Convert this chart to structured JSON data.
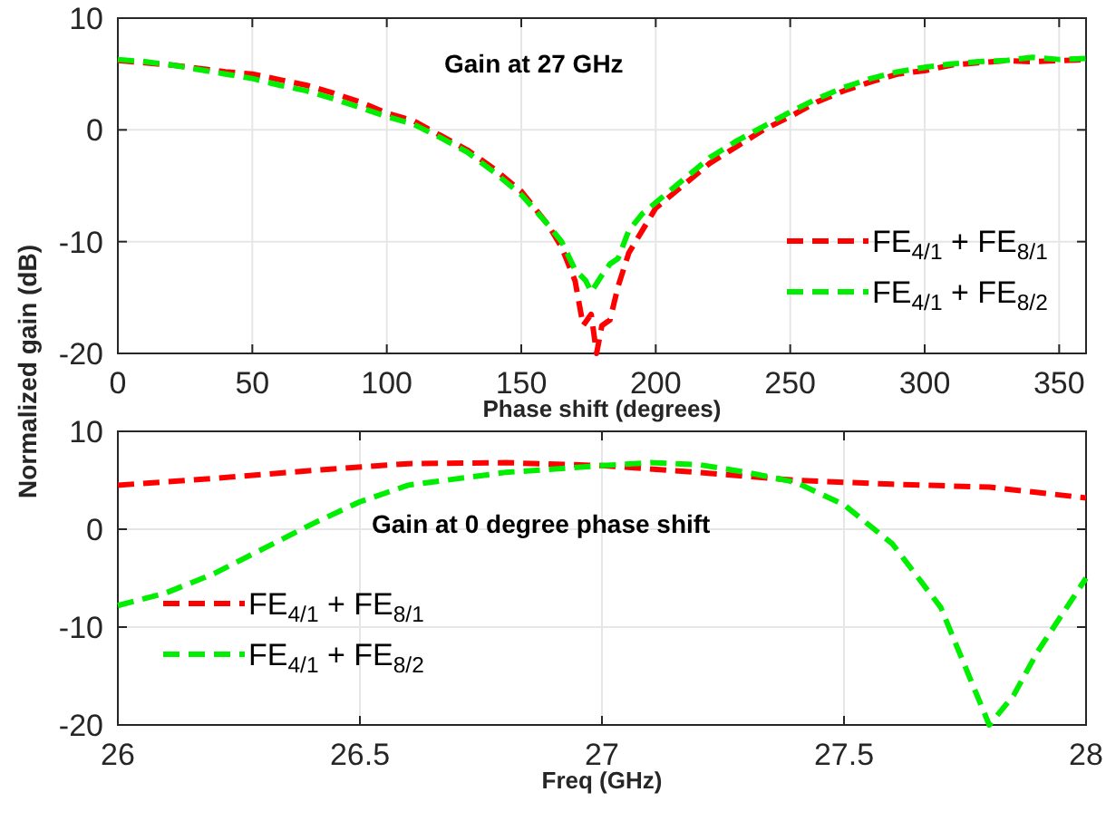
{
  "chart_data": [
    {
      "type": "line",
      "title": "Gain at 27 GHz",
      "xlabel": "Phase shift (degrees)",
      "ylabel": "Normalized gain (dB)",
      "xlim": [
        0,
        360
      ],
      "xticks": [
        0,
        50,
        100,
        150,
        200,
        250,
        300,
        350
      ],
      "ylim": [
        -20,
        10
      ],
      "yticks": [
        -20,
        -10,
        0,
        10
      ],
      "grid": true,
      "legend": "bottom right",
      "line_style": "dashed",
      "series": [
        {
          "name": "FE$_{4/1}$ + FE$_{8/1}$",
          "color": "#ff0000",
          "x": [
            0,
            10,
            20,
            30,
            40,
            50,
            60,
            70,
            80,
            90,
            100,
            110,
            120,
            130,
            140,
            150,
            160,
            165,
            170,
            173,
            176,
            178,
            180,
            183,
            186,
            190,
            195,
            200,
            210,
            220,
            230,
            240,
            250,
            260,
            270,
            280,
            290,
            300,
            310,
            320,
            330,
            340,
            350,
            360
          ],
          "values": [
            6.2,
            6.0,
            5.8,
            5.5,
            5.2,
            5.0,
            4.5,
            4.0,
            3.3,
            2.5,
            1.5,
            0.8,
            -0.5,
            -1.8,
            -3.5,
            -5.5,
            -8.5,
            -10.5,
            -13.5,
            -17.5,
            -16.5,
            -20,
            -17.5,
            -17,
            -14,
            -11,
            -9,
            -7,
            -5,
            -3,
            -1.5,
            0,
            1.2,
            2.5,
            3.5,
            4.3,
            5.0,
            5.3,
            5.8,
            6.0,
            6.2,
            6.1,
            6.2,
            6.3
          ]
        },
        {
          "name": "FE$_{4/1}$ + FE$_{8/2}$",
          "color": "#00ee00",
          "x": [
            0,
            10,
            20,
            30,
            40,
            50,
            60,
            70,
            80,
            90,
            100,
            110,
            120,
            130,
            140,
            150,
            160,
            165,
            170,
            174,
            176,
            180,
            183,
            186,
            190,
            195,
            200,
            210,
            220,
            230,
            240,
            250,
            260,
            270,
            280,
            290,
            300,
            310,
            320,
            330,
            340,
            350,
            360
          ],
          "values": [
            6.3,
            6.1,
            5.8,
            5.4,
            5.0,
            4.6,
            4.0,
            3.5,
            2.8,
            2.0,
            1.2,
            0.5,
            -0.7,
            -2.0,
            -3.8,
            -5.8,
            -8.5,
            -10.0,
            -12.5,
            -13.5,
            -14.5,
            -13.0,
            -12.0,
            -11.5,
            -9.0,
            -7.5,
            -6.5,
            -4.5,
            -2.5,
            -1.0,
            0.3,
            1.6,
            2.8,
            3.8,
            4.6,
            5.2,
            5.6,
            5.9,
            6.1,
            6.2,
            6.5,
            6.3,
            6.4
          ]
        }
      ]
    },
    {
      "type": "line",
      "title": "Gain at 0 degree phase shift",
      "xlabel": "Freq (GHz)",
      "xlim": [
        26,
        28
      ],
      "xticks": [
        26,
        26.5,
        27,
        27.5,
        28
      ],
      "ylim": [
        -20,
        10
      ],
      "yticks": [
        -20,
        -10,
        0,
        10
      ],
      "grid": true,
      "legend": "bottom left",
      "line_style": "dashed",
      "series": [
        {
          "name": "FE$_{4/1}$ + FE$_{8/1}$",
          "color": "#ff0000",
          "x": [
            26,
            26.2,
            26.4,
            26.6,
            26.8,
            27,
            27.2,
            27.4,
            27.6,
            27.8,
            28
          ],
          "values": [
            4.5,
            5.2,
            6.0,
            6.7,
            6.8,
            6.5,
            5.8,
            5.0,
            4.6,
            4.3,
            3.2
          ]
        },
        {
          "name": "FE$_{4/1}$ + FE$_{8/2}$",
          "color": "#00ee00",
          "x": [
            26,
            26.1,
            26.2,
            26.3,
            26.4,
            26.5,
            26.6,
            26.8,
            27,
            27.1,
            27.2,
            27.3,
            27.4,
            27.5,
            27.6,
            27.7,
            27.75,
            27.8,
            27.85,
            27.9,
            28
          ],
          "values": [
            -7.8,
            -6.5,
            -4.5,
            -2.0,
            0.5,
            2.8,
            4.5,
            5.8,
            6.5,
            6.8,
            6.6,
            5.8,
            4.8,
            2.5,
            -1.5,
            -8.0,
            -14.0,
            -20.0,
            -17.0,
            -12.5,
            -5.0
          ]
        }
      ]
    }
  ]
}
